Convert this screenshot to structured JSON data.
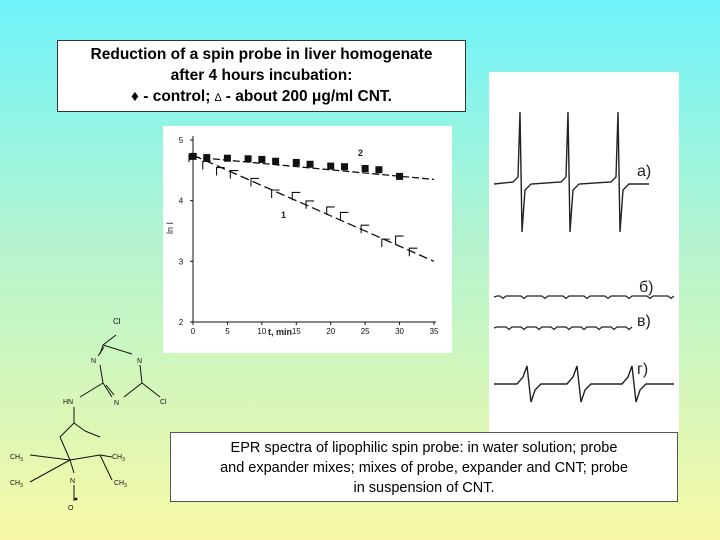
{
  "title": {
    "line1": "Reduction of a spin probe in liver homogenate",
    "line2": "after 4 hours incubation:",
    "line3_control": "♦ - control; ",
    "line3_delta": "∆",
    "line3_cnt": " - about 200 μg/ml CNT."
  },
  "chart_data": {
    "type": "scatter",
    "xlabel": "t, min",
    "ylabel": "ln I",
    "xlim": [
      0,
      35
    ],
    "ylim": [
      2,
      5
    ],
    "xticks": [
      "0",
      "5",
      "10",
      "15",
      "20",
      "25",
      "30",
      "35"
    ],
    "yticks": [
      "2",
      "3",
      "4",
      "5"
    ],
    "series": [
      {
        "name": "2",
        "marker": "square",
        "x": [
          0,
          2,
          5,
          8,
          10,
          12,
          15,
          17,
          20,
          22,
          25,
          27,
          30
        ],
        "y": [
          4.73,
          4.71,
          4.7,
          4.69,
          4.68,
          4.65,
          4.63,
          4.6,
          4.57,
          4.56,
          4.53,
          4.51,
          4.4
        ],
        "fit": [
          [
            0,
            4.72
          ],
          [
            35,
            4.35
          ]
        ]
      },
      {
        "name": "1",
        "marker": "open-corner",
        "x": [
          0,
          2,
          4,
          6,
          9,
          12,
          15,
          17,
          20,
          22,
          25,
          28,
          30,
          32
        ],
        "y": [
          4.7,
          4.58,
          4.48,
          4.43,
          4.3,
          4.11,
          4.07,
          3.93,
          3.83,
          3.74,
          3.53,
          3.3,
          3.35,
          3.15
        ],
        "fit": [
          [
            0,
            4.75
          ],
          [
            35,
            3.0
          ]
        ]
      }
    ]
  },
  "epr": {
    "labels": [
      "a)",
      "б)",
      "в)",
      "г)"
    ]
  },
  "caption": {
    "line1": "EPR spectra of lipophilic spin probe: in water solution; probe",
    "line2": "and expander mixes; mixes of probe, expander and CNT; probe",
    "line3": "in suspension of CNT."
  },
  "molecule": {
    "cl_top": "Cl",
    "cl_right": "Cl",
    "n1": "N",
    "n2": "N",
    "n3": "N",
    "hn": "HN",
    "ch3_1": "CH",
    "ch3_2": "CH",
    "ch3_3": "CH",
    "ch3_4": "CH",
    "sub3": "3",
    "n_pip": "N",
    "o": "O"
  }
}
